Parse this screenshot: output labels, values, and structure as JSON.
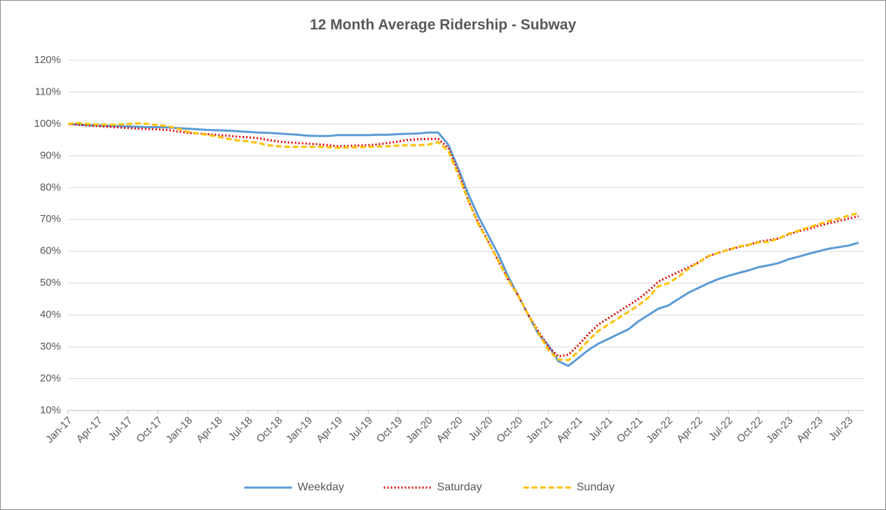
{
  "chart_data": {
    "type": "line",
    "title": "12 Month Average Ridership - Subway",
    "categories": [
      "Jan-17",
      null,
      null,
      "Apr-17",
      null,
      null,
      "Jul-17",
      null,
      null,
      "Oct-17",
      null,
      null,
      "Jan-18",
      null,
      null,
      "Apr-18",
      null,
      null,
      "Jul-18",
      null,
      null,
      "Oct-18",
      null,
      null,
      "Jan-19",
      null,
      null,
      "Apr-19",
      null,
      null,
      "Jul-19",
      null,
      null,
      "Oct-19",
      null,
      null,
      "Jan-20",
      null,
      null,
      "Apr-20",
      null,
      null,
      "Jul-20",
      null,
      null,
      "Oct-20",
      null,
      null,
      "Jan-21",
      null,
      null,
      "Apr-21",
      null,
      null,
      "Jul-21",
      null,
      null,
      "Oct-21",
      null,
      null,
      "Jan-22",
      null,
      null,
      "Apr-22",
      null,
      null,
      "Jul-22",
      null,
      null,
      "Oct-22",
      null,
      null,
      "Jan-23",
      null,
      null,
      "Apr-23",
      null,
      null,
      "Jul-23",
      null
    ],
    "series": [
      {
        "name": "Weekday",
        "color": "#5b9bd5",
        "style": "solid",
        "values": [
          100,
          99.8,
          99.6,
          99.5,
          99.4,
          99.3,
          99.2,
          99.1,
          99.0,
          99.0,
          98.9,
          98.7,
          98.5,
          98.3,
          98.1,
          98.0,
          97.9,
          97.7,
          97.5,
          97.3,
          97.2,
          97.0,
          96.8,
          96.6,
          96.3,
          96.2,
          96.2,
          96.5,
          96.5,
          96.5,
          96.5,
          96.6,
          96.6,
          96.8,
          96.9,
          97.0,
          97.3,
          97.3,
          93.5,
          86.0,
          78.0,
          71.0,
          65.0,
          59.0,
          52.0,
          46.0,
          40.0,
          34.0,
          30.5,
          25.5,
          24.0,
          26.5,
          29.0,
          31.0,
          32.5,
          34.0,
          35.5,
          38.0,
          40.0,
          42.0,
          43.0,
          45.0,
          47.0,
          48.5,
          50.0,
          51.3,
          52.3,
          53.2,
          54.0,
          55.0,
          55.6,
          56.3,
          57.5,
          58.3,
          59.2,
          60.0,
          60.8,
          61.3,
          61.8,
          62.7
        ]
      },
      {
        "name": "Saturday",
        "color": "#e00000",
        "style": "dotted",
        "values": [
          100,
          99.8,
          99.5,
          99.3,
          99.1,
          98.9,
          98.7,
          98.5,
          98.4,
          98.3,
          98.1,
          97.6,
          97.2,
          97.0,
          96.8,
          96.5,
          96.3,
          96.0,
          95.8,
          95.5,
          95.0,
          94.5,
          94.2,
          94.0,
          93.8,
          93.6,
          93.3,
          93.0,
          93.1,
          93.2,
          93.3,
          93.6,
          94.0,
          94.5,
          95.0,
          95.2,
          95.3,
          95.3,
          92.5,
          85.0,
          76.0,
          69.0,
          63.0,
          57.0,
          51.0,
          46.0,
          40.0,
          35.0,
          30.0,
          27.0,
          27.5,
          30.5,
          34.0,
          37.0,
          39.0,
          41.0,
          43.0,
          45.0,
          47.5,
          50.5,
          52.0,
          53.5,
          55.0,
          56.5,
          58.5,
          59.5,
          60.5,
          61.3,
          62.0,
          63.0,
          63.5,
          64.0,
          65.3,
          66.3,
          67.0,
          68.0,
          68.8,
          69.5,
          70.3,
          71.0
        ]
      },
      {
        "name": "Sunday",
        "color": "#ffc000",
        "style": "dashed",
        "values": [
          100,
          100.3,
          100,
          99.8,
          99.8,
          99.8,
          100,
          100.2,
          100,
          99.6,
          99.3,
          98.5,
          97.5,
          97.0,
          96.5,
          96.0,
          95.3,
          94.8,
          94.5,
          94.0,
          93.3,
          93.0,
          92.8,
          92.8,
          92.8,
          92.8,
          92.7,
          92.5,
          92.6,
          92.7,
          92.8,
          92.9,
          93.0,
          93.2,
          93.3,
          93.3,
          93.5,
          94.3,
          91.5,
          84.0,
          76.0,
          68.5,
          63.0,
          57.0,
          51.0,
          46.0,
          40.0,
          34.5,
          29.0,
          26.0,
          25.8,
          28.5,
          32.0,
          35.0,
          37.0,
          39.0,
          41.0,
          43.0,
          45.5,
          49.0,
          50.0,
          52.0,
          54.5,
          56.5,
          58.5,
          59.5,
          60.5,
          61.5,
          62.0,
          62.8,
          63.0,
          64.0,
          65.5,
          66.5,
          67.5,
          68.5,
          69.5,
          70.3,
          71.2,
          72.0
        ]
      }
    ],
    "ylim": [
      10,
      120
    ],
    "yticks": [
      {
        "value": 10,
        "label": "10%"
      },
      {
        "value": 20,
        "label": "20%"
      },
      {
        "value": 30,
        "label": "30%"
      },
      {
        "value": 40,
        "label": "40%"
      },
      {
        "value": 50,
        "label": "50%"
      },
      {
        "value": 60,
        "label": "60%"
      },
      {
        "value": 70,
        "label": "70%"
      },
      {
        "value": 80,
        "label": "80%"
      },
      {
        "value": 90,
        "label": "90%"
      },
      {
        "value": 100,
        "label": "100%"
      },
      {
        "value": 110,
        "label": "110%"
      },
      {
        "value": 120,
        "label": "120%"
      }
    ],
    "grid": true,
    "legend": "bottom"
  }
}
